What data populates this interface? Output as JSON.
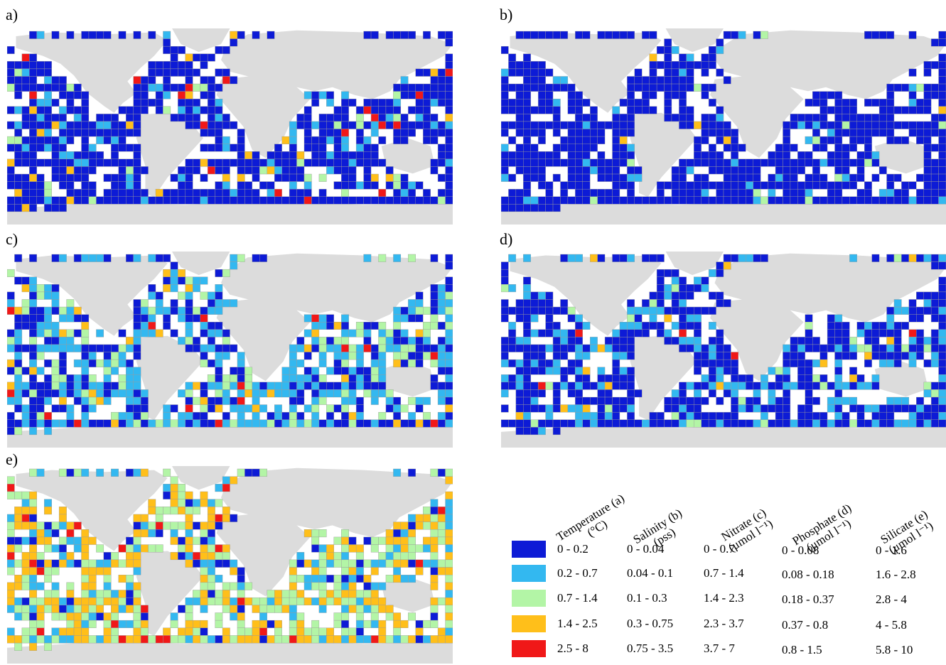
{
  "panels": [
    {
      "label": "a)",
      "variable": "Temperature",
      "seed": 11,
      "weights": [
        0.8,
        0.11,
        0.04,
        0.03,
        0.02
      ]
    },
    {
      "label": "b)",
      "variable": "Salinity",
      "seed": 23,
      "weights": [
        0.91,
        0.06,
        0.02,
        0.01,
        0.0
      ]
    },
    {
      "label": "c)",
      "variable": "Nitrate",
      "seed": 37,
      "weights": [
        0.36,
        0.4,
        0.17,
        0.05,
        0.02
      ]
    },
    {
      "label": "d)",
      "variable": "Phosphate",
      "seed": 41,
      "weights": [
        0.66,
        0.28,
        0.04,
        0.015,
        0.005
      ]
    },
    {
      "label": "e)",
      "variable": "Silicate",
      "seed": 53,
      "weights": [
        0.1,
        0.17,
        0.36,
        0.32,
        0.05
      ]
    }
  ],
  "colors": {
    "classes": [
      "#0d1bd6",
      "#33b8f0",
      "#b3f5a6",
      "#ffbf1a",
      "#f01818"
    ],
    "land": "#dcdcdc",
    "grid_line": "#9a9a9a"
  },
  "legend": {
    "headers": [
      {
        "line1": "Temperature (a)",
        "line2": "(°C)"
      },
      {
        "line1": "Salinity (b)",
        "line2": "(pss)"
      },
      {
        "line1": "Nitrate (c)",
        "line2": "(μmol l⁻¹)"
      },
      {
        "line1": "Phosphate (d)",
        "line2": "(μmol l⁻¹)"
      },
      {
        "line1": "Silicate (e)",
        "line2": "(μmol l⁻¹)"
      }
    ],
    "rows": [
      [
        "0 - 0.2",
        "0 - 0.04",
        "0 - 0.7",
        "0 - 0.08",
        "0 - 1.6"
      ],
      [
        "0.2 - 0.7",
        "0.04 - 0.1",
        "0.7 - 1.4",
        "0.08 - 0.18",
        "1.6 - 2.8"
      ],
      [
        "0.7 - 1.4",
        "0.1 - 0.3",
        "1.4 - 2.3",
        "0.18 - 0.37",
        "2.8 - 4"
      ],
      [
        "1.4 - 2.5",
        "0.3 - 0.75",
        "2.3 - 3.7",
        "0.37 - 0.8",
        "4 - 5.8"
      ],
      [
        "2.5 - 8",
        "0.75 - 3.5",
        "3.7 - 7",
        "0.8 - 1.5",
        "5.8 - 10"
      ]
    ]
  }
}
